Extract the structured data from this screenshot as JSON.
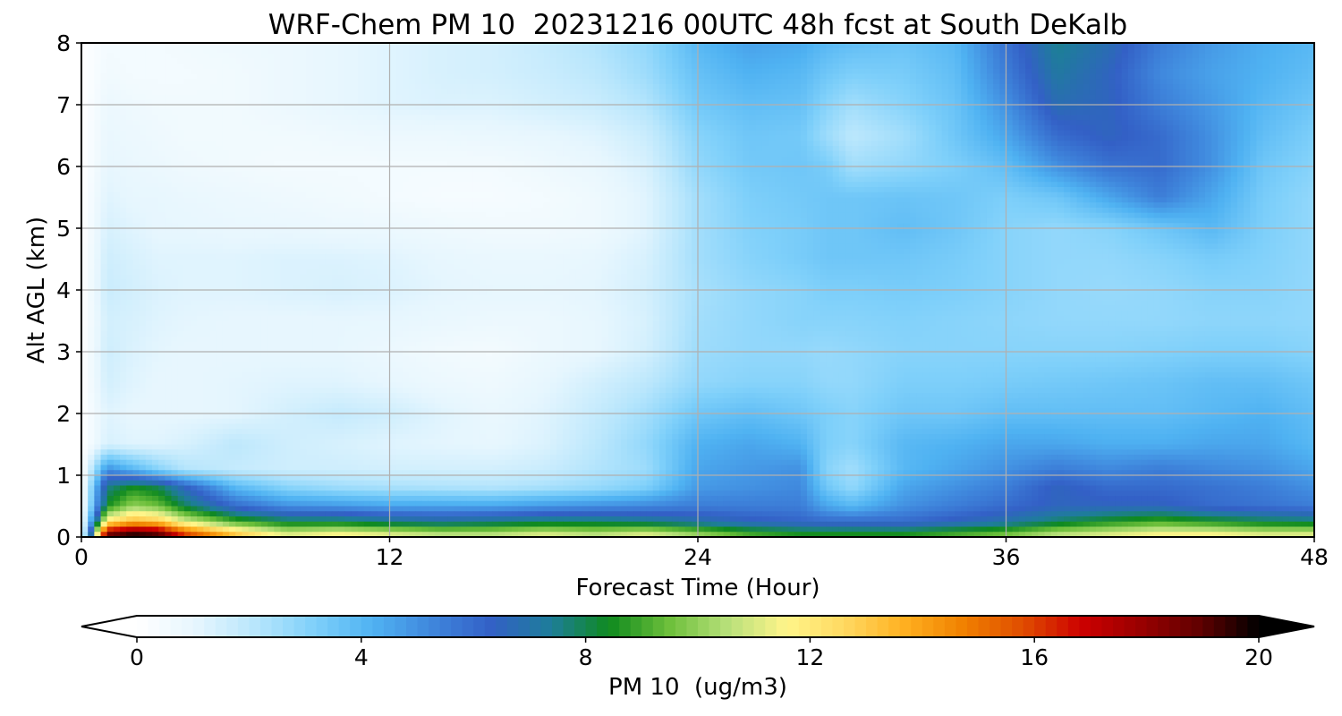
{
  "chart_data": {
    "type": "heatmap",
    "title": "WRF-Chem PM 10  20231216 00UTC 48h fcst at South DeKalb",
    "xlabel": "Forecast Time (Hour)",
    "ylabel": "Alt AGL (km)",
    "xlim": [
      0,
      48
    ],
    "ylim": [
      0,
      8
    ],
    "x_ticks": [
      "0",
      "12",
      "24",
      "36",
      "48"
    ],
    "y_ticks": [
      "0",
      "1",
      "2",
      "3",
      "4",
      "5",
      "6",
      "7",
      "8"
    ],
    "grid": true,
    "colorbar": {
      "label": "PM 10  (ug/m3)",
      "min": 0,
      "max": 20,
      "ticks": [
        "0",
        "4",
        "8",
        "12",
        "16",
        "20"
      ],
      "extend": "both",
      "colors": [
        "#ffffff",
        "#e6f6fe",
        "#b8e6fc",
        "#7fd0fa",
        "#4fb2f2",
        "#3f86dc",
        "#3360c6",
        "#1e7d9a",
        "#0f8a1f",
        "#6cbf3a",
        "#b7e07a",
        "#fff58a",
        "#ffd860",
        "#ffb020",
        "#f08000",
        "#e04d00",
        "#cc0000",
        "#990000",
        "#600000",
        "#000000"
      ]
    },
    "hours": [
      0,
      1,
      2,
      3,
      4,
      6,
      8,
      10,
      12,
      14,
      16,
      18,
      20,
      22,
      24,
      26,
      28,
      29,
      30,
      32,
      34,
      36,
      38,
      40,
      42,
      44,
      46,
      48
    ],
    "levels_km": [
      0.05,
      0.25,
      0.5,
      0.8,
      1.1,
      1.5,
      2.0,
      2.5,
      3.0,
      3.5,
      4.0,
      4.5,
      5.0,
      5.5,
      6.0,
      6.5,
      7.0,
      7.5,
      8.0
    ],
    "values": [
      [
        0.0,
        18.5,
        19.5,
        19.0,
        16.0,
        13.0,
        11.0,
        11.5,
        11.0,
        10.5,
        10.5,
        11.0,
        10.5,
        11.0,
        10.0,
        9.0,
        8.5,
        8.5,
        8.5,
        8.5,
        9.0,
        9.5,
        10.5,
        11.0,
        11.5,
        11.5,
        11.0,
        11.0
      ],
      [
        0.0,
        12.0,
        13.5,
        13.0,
        11.0,
        9.0,
        8.0,
        8.0,
        7.5,
        7.2,
        7.5,
        7.8,
        7.8,
        7.5,
        7.0,
        6.5,
        6.2,
        6.0,
        6.0,
        6.0,
        6.5,
        7.0,
        7.8,
        8.5,
        9.0,
        8.5,
        8.0,
        7.8
      ],
      [
        0.0,
        8.5,
        10.0,
        9.5,
        8.0,
        6.0,
        5.0,
        4.8,
        4.5,
        4.5,
        4.5,
        4.8,
        5.0,
        5.2,
        5.5,
        5.5,
        5.5,
        4.5,
        4.0,
        5.0,
        5.5,
        6.0,
        6.5,
        6.5,
        6.5,
        6.0,
        5.8,
        5.5
      ],
      [
        0.0,
        7.5,
        8.5,
        8.0,
        6.5,
        4.0,
        3.0,
        2.6,
        2.4,
        2.3,
        2.2,
        2.4,
        2.7,
        3.2,
        4.8,
        5.0,
        5.2,
        3.5,
        2.8,
        4.5,
        5.0,
        5.5,
        6.5,
        6.0,
        6.0,
        5.8,
        5.5,
        5.0
      ],
      [
        0.0,
        5.0,
        4.0,
        3.0,
        2.2,
        1.8,
        1.6,
        1.6,
        1.5,
        1.5,
        1.5,
        1.7,
        2.2,
        2.6,
        4.5,
        4.8,
        5.0,
        3.0,
        2.5,
        4.0,
        4.5,
        5.0,
        5.5,
        5.2,
        5.5,
        5.2,
        5.0,
        4.5
      ],
      [
        0.0,
        1.4,
        1.2,
        1.2,
        1.4,
        2.0,
        1.6,
        1.4,
        1.2,
        1.1,
        1.0,
        1.3,
        2.0,
        2.8,
        4.2,
        4.5,
        4.2,
        3.2,
        3.0,
        4.0,
        4.2,
        4.5,
        4.5,
        4.3,
        4.3,
        4.5,
        4.5,
        4.0
      ],
      [
        0.0,
        1.2,
        1.0,
        1.0,
        1.0,
        1.1,
        1.5,
        1.8,
        1.6,
        1.2,
        0.9,
        1.2,
        1.8,
        2.5,
        3.5,
        3.8,
        3.5,
        3.2,
        3.0,
        3.5,
        3.5,
        3.8,
        3.8,
        3.8,
        3.8,
        4.0,
        4.2,
        3.8
      ],
      [
        0.0,
        1.5,
        1.2,
        1.0,
        1.0,
        1.1,
        1.2,
        1.2,
        1.0,
        0.8,
        0.7,
        1.0,
        1.5,
        2.0,
        2.8,
        3.0,
        3.0,
        2.8,
        2.8,
        3.2,
        3.2,
        3.3,
        3.4,
        3.5,
        3.6,
        3.8,
        3.8,
        3.5
      ],
      [
        0.0,
        1.6,
        1.3,
        1.1,
        1.0,
        1.0,
        1.0,
        1.0,
        0.8,
        0.6,
        0.5,
        0.8,
        1.0,
        1.5,
        2.6,
        2.8,
        2.8,
        2.7,
        2.8,
        3.0,
        3.0,
        3.0,
        3.0,
        3.0,
        3.1,
        3.2,
        3.2,
        3.0
      ],
      [
        0.0,
        1.5,
        1.4,
        1.2,
        1.1,
        1.0,
        1.0,
        1.0,
        1.0,
        0.9,
        0.8,
        0.8,
        1.0,
        1.4,
        2.5,
        2.8,
        3.0,
        3.0,
        3.0,
        3.1,
        3.0,
        2.9,
        2.8,
        2.8,
        2.8,
        2.9,
        2.9,
        2.8
      ],
      [
        0.0,
        1.7,
        1.5,
        1.3,
        1.2,
        1.2,
        1.3,
        1.4,
        1.3,
        1.1,
        1.0,
        1.0,
        1.1,
        1.5,
        2.4,
        2.8,
        3.0,
        3.2,
        3.2,
        3.3,
        3.2,
        3.0,
        2.8,
        2.7,
        2.8,
        3.0,
        3.0,
        2.8
      ],
      [
        0.0,
        1.6,
        1.4,
        1.2,
        1.2,
        1.2,
        1.3,
        1.3,
        1.2,
        1.0,
        0.9,
        0.9,
        1.0,
        1.4,
        2.5,
        3.0,
        3.3,
        3.5,
        3.5,
        3.5,
        3.3,
        3.0,
        2.8,
        2.8,
        3.0,
        3.3,
        3.1,
        2.8
      ],
      [
        0.0,
        1.4,
        1.2,
        1.0,
        1.0,
        0.9,
        0.9,
        0.8,
        0.8,
        0.7,
        0.6,
        0.6,
        0.7,
        1.2,
        2.5,
        3.1,
        3.3,
        3.5,
        3.5,
        3.8,
        3.5,
        3.0,
        2.8,
        3.0,
        3.5,
        4.0,
        3.2,
        2.8
      ],
      [
        0.0,
        1.2,
        1.0,
        1.0,
        0.9,
        0.8,
        0.7,
        0.6,
        0.5,
        0.4,
        0.4,
        0.5,
        0.7,
        1.2,
        2.5,
        3.2,
        3.4,
        3.5,
        3.5,
        3.6,
        3.5,
        3.2,
        3.5,
        4.5,
        5.5,
        4.5,
        3.3,
        2.8
      ],
      [
        0.0,
        1.0,
        0.9,
        0.8,
        0.7,
        0.6,
        0.5,
        0.5,
        0.5,
        0.5,
        0.5,
        0.7,
        0.9,
        1.4,
        2.8,
        3.4,
        3.5,
        3.3,
        2.5,
        2.8,
        3.2,
        3.8,
        5.0,
        5.8,
        6.0,
        5.0,
        3.5,
        3.0
      ],
      [
        0.0,
        0.9,
        0.8,
        0.7,
        0.6,
        0.6,
        0.6,
        0.7,
        0.8,
        0.8,
        0.9,
        1.0,
        1.2,
        1.7,
        3.0,
        3.5,
        3.4,
        2.6,
        2.0,
        2.5,
        3.5,
        4.5,
        6.0,
        6.5,
        6.0,
        5.0,
        3.8,
        3.2
      ],
      [
        0.0,
        0.8,
        0.7,
        0.6,
        0.6,
        0.6,
        0.8,
        1.0,
        1.2,
        1.3,
        1.3,
        1.5,
        1.7,
        2.2,
        3.4,
        3.8,
        3.7,
        3.0,
        2.5,
        3.0,
        3.6,
        5.0,
        6.8,
        6.5,
        5.5,
        4.8,
        4.0,
        3.5
      ],
      [
        0.0,
        0.6,
        0.5,
        0.5,
        0.5,
        0.6,
        0.8,
        1.0,
        1.2,
        1.4,
        1.5,
        1.7,
        2.0,
        2.6,
        3.7,
        4.2,
        4.0,
        3.5,
        3.2,
        3.3,
        3.8,
        5.5,
        7.2,
        6.5,
        5.2,
        4.6,
        4.2,
        3.8
      ],
      [
        0.0,
        0.5,
        0.5,
        0.5,
        0.6,
        0.7,
        0.8,
        1.0,
        1.2,
        1.4,
        1.5,
        1.8,
        2.2,
        2.8,
        4.0,
        4.6,
        4.4,
        4.0,
        3.8,
        3.6,
        4.0,
        5.8,
        7.5,
        6.8,
        5.5,
        4.8,
        4.3,
        4.0
      ]
    ]
  }
}
